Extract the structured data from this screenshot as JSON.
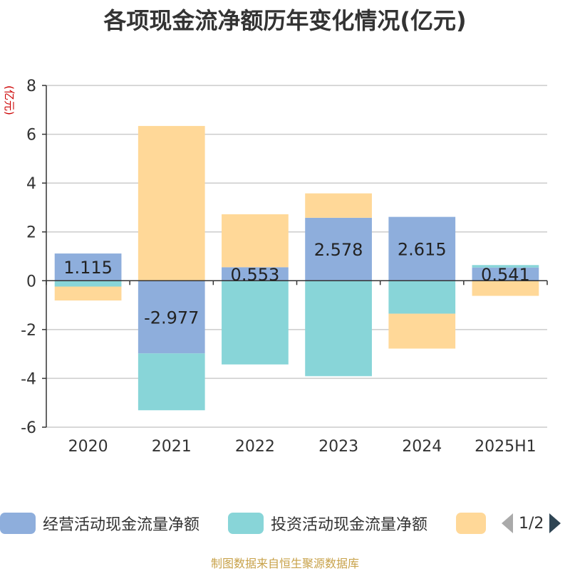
{
  "chart_data": {
    "type": "bar",
    "stacked": true,
    "title": "各项现金流净额历年变化情况(亿元)",
    "ylabel": "(亿元)",
    "categories": [
      "2020",
      "2021",
      "2022",
      "2023",
      "2024",
      "2025H1"
    ],
    "ylim": [
      -6,
      8
    ],
    "yticks": [
      -6,
      -4,
      -2,
      0,
      2,
      4,
      6,
      8
    ],
    "grid": true,
    "series": [
      {
        "name": "经营活动现金流量净额",
        "color": "#8eaedc",
        "values": [
          1.115,
          -2.977,
          0.553,
          2.578,
          2.615,
          0.541
        ],
        "labels": [
          "1.115",
          "-2.977",
          "0.553",
          "2.578",
          "2.615",
          "0.541"
        ]
      },
      {
        "name": "投资活动现金流量净额",
        "color": "#88d5d8",
        "values": [
          -0.24,
          -2.33,
          -3.43,
          -3.91,
          -1.35,
          0.1
        ]
      },
      {
        "name": "",
        "color": "#ffd898",
        "values": [
          -0.57,
          6.34,
          2.17,
          1.0,
          -1.43,
          -0.62
        ]
      }
    ],
    "legend": {
      "placement": "bottom",
      "page": "1/2"
    }
  },
  "source_note": "制图数据来自恒生聚源数据库"
}
